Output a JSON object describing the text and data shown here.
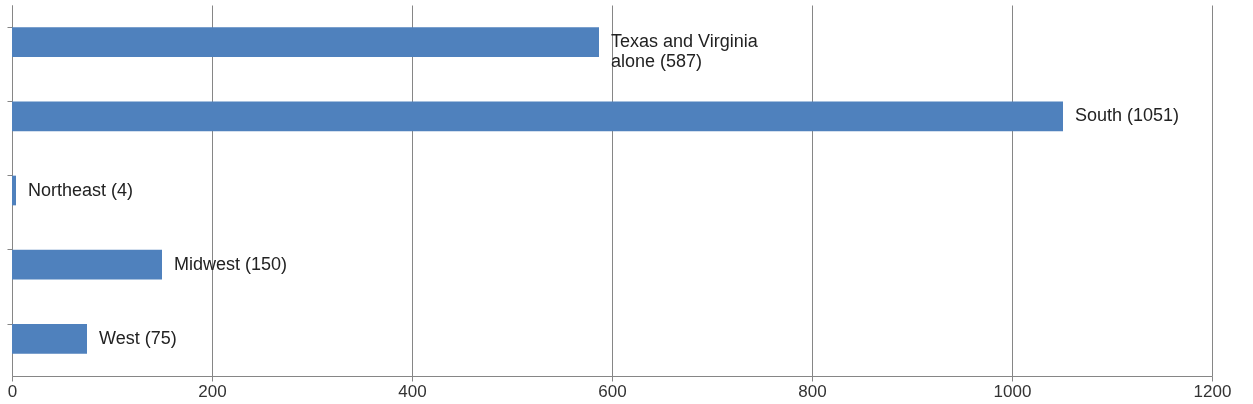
{
  "chart_data": {
    "type": "bar",
    "orientation": "horizontal",
    "categories": [
      null,
      null,
      null,
      null,
      null
    ],
    "values": [
      587,
      1051,
      4,
      150,
      75
    ],
    "value_labels": [
      "Texas and Virginia\nalone (587)",
      "South (1051)",
      "Northeast (4)",
      "Midwest (150)",
      "West (75)"
    ],
    "color": "#4f81bd",
    "xlim": [
      0,
      1200
    ],
    "xticks": [
      0,
      200,
      400,
      600,
      800,
      1000,
      1200
    ],
    "grid": "x"
  }
}
